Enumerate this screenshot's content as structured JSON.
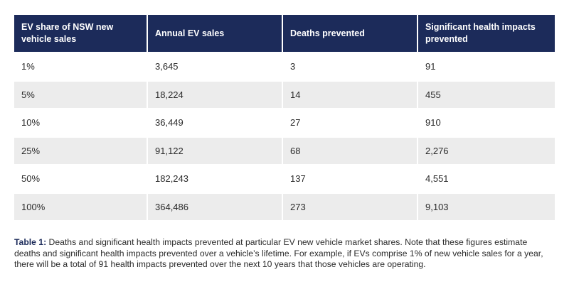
{
  "table": {
    "headers": [
      "EV share of NSW new vehicle sales",
      "Annual EV sales",
      "Deaths prevented",
      "Significant health impacts prevented"
    ],
    "rows": [
      [
        "1%",
        "3,645",
        "3",
        "91"
      ],
      [
        "5%",
        "18,224",
        "14",
        "455"
      ],
      [
        "10%",
        "36,449",
        "27",
        "910"
      ],
      [
        "25%",
        "91,122",
        "68",
        "2,276"
      ],
      [
        "50%",
        "182,243",
        "137",
        "4,551"
      ],
      [
        "100%",
        "364,486",
        "273",
        "9,103"
      ]
    ]
  },
  "caption": {
    "label": "Table 1:",
    "text": " Deaths and significant health impacts prevented at particular EV new vehicle market shares. Note that these figures estimate deaths and significant health impacts prevented over a vehicle’s lifetime. For example, if EVs comprise 1% of new vehicle sales for a year, there will be a total of 91 health impacts prevented over the next 10 years that those vehicles are operating."
  },
  "colors": {
    "header_bg": "#1c2b5a",
    "stripe": "#ececec"
  }
}
